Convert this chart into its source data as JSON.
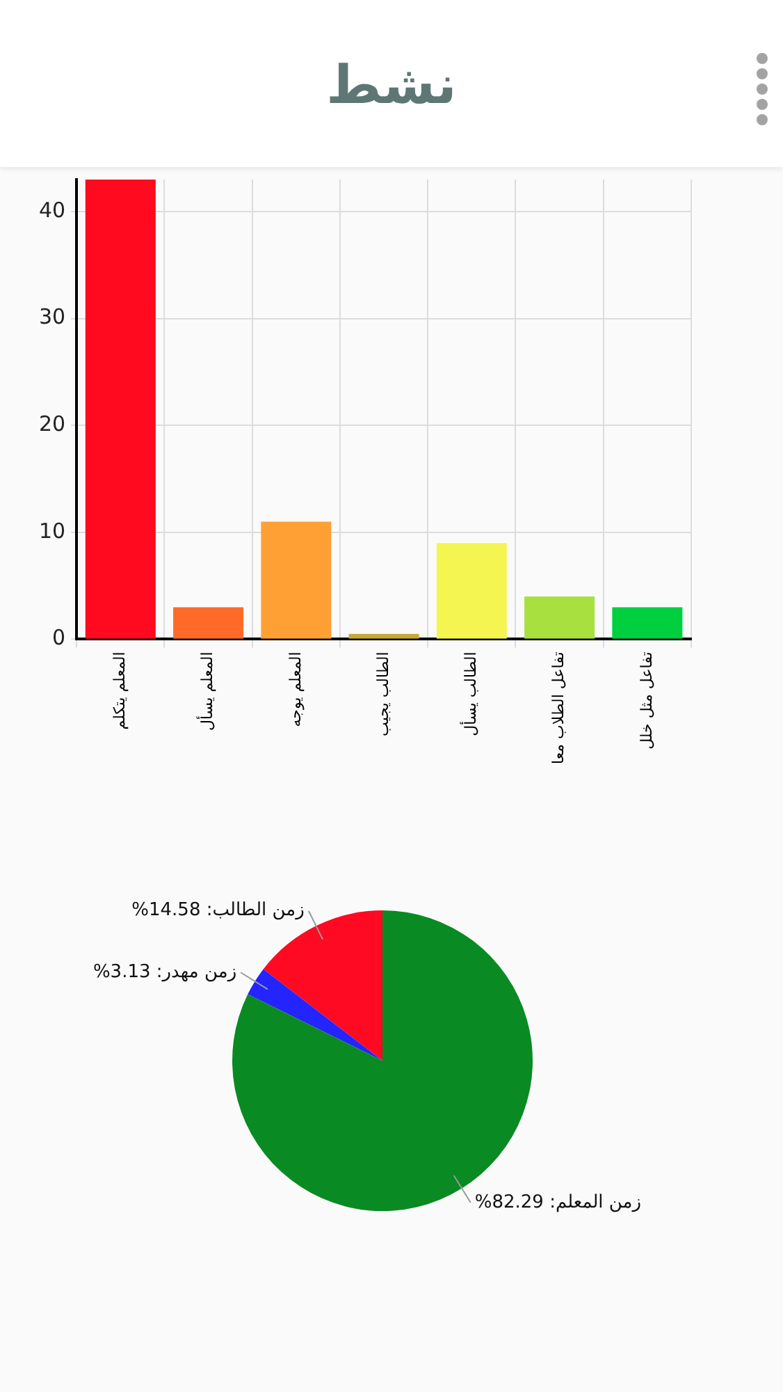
{
  "chart_data": [
    {
      "type": "bar",
      "title": "نشط",
      "categories": [
        "المعلم يتكلم",
        "المعلم يسأل",
        "المعلم يوجه",
        "الطالب يجيب",
        "الطالب يسأل",
        "تفاعل الطلاب معا",
        "تفاعل مثل خلل"
      ],
      "values": [
        43,
        3,
        11,
        0.5,
        9,
        4,
        3
      ],
      "colors": [
        "#ff0a1e",
        "#ff6a28",
        "#ffa035",
        "#c9a832",
        "#f5f552",
        "#a8e040",
        "#00d040"
      ],
      "ylim": [
        0,
        43
      ],
      "yticks": [
        0,
        10,
        20,
        30,
        40
      ],
      "grid": true
    },
    {
      "type": "pie",
      "categories": [
        "زمن الطالب",
        "زمن مهدر",
        "زمن المعلم"
      ],
      "values": [
        14.58,
        3.13,
        82.29
      ],
      "colors": [
        "#ff0a22",
        "#2424ff",
        "#0a8a22"
      ],
      "value_labels": [
        "14.58%",
        "3.13%",
        "82.29%"
      ]
    }
  ]
}
